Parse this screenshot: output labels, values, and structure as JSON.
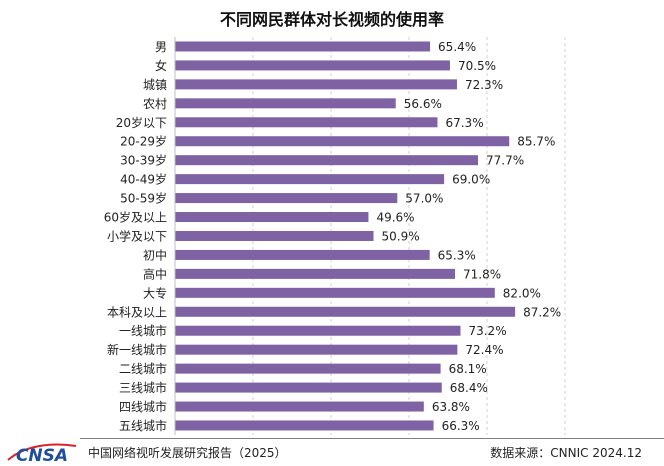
{
  "chart_data": {
    "type": "bar",
    "orientation": "horizontal",
    "title": "不同网民群体对长视频的使用率",
    "categories": [
      "男",
      "女",
      "城镇",
      "农村",
      "20岁以下",
      "20-29岁",
      "30-39岁",
      "40-49岁",
      "50-59岁",
      "60岁及以上",
      "小学及以下",
      "初中",
      "高中",
      "大专",
      "本科及以上",
      "一线城市",
      "新一线城市",
      "二线城市",
      "三线城市",
      "四线城市",
      "五线城市"
    ],
    "values": [
      65.4,
      70.5,
      72.3,
      56.6,
      67.3,
      85.7,
      77.7,
      69.0,
      57.0,
      49.6,
      50.9,
      65.3,
      71.8,
      82.0,
      87.2,
      73.2,
      72.4,
      68.1,
      68.4,
      63.8,
      66.3
    ],
    "value_labels": [
      "65.4%",
      "70.5%",
      "72.3%",
      "56.6%",
      "67.3%",
      "85.7%",
      "77.7%",
      "69.0%",
      "57.0%",
      "49.6%",
      "50.9%",
      "65.3%",
      "71.8%",
      "82.0%",
      "87.2%",
      "73.2%",
      "72.4%",
      "68.1%",
      "68.4%",
      "63.8%",
      "66.3%"
    ],
    "xlim": [
      0,
      100
    ],
    "grid": "vertical dashed",
    "bar_color": "#7e62a3"
  },
  "footer": {
    "logo_text": "CNSA",
    "report_name": "中国网络视听发展研究报告（2025）",
    "source": "数据来源：CNNIC  2024.12"
  },
  "colors": {
    "bar": "#7e62a3",
    "logo_blue": "#1f4e9a",
    "logo_red": "#d9222a"
  }
}
